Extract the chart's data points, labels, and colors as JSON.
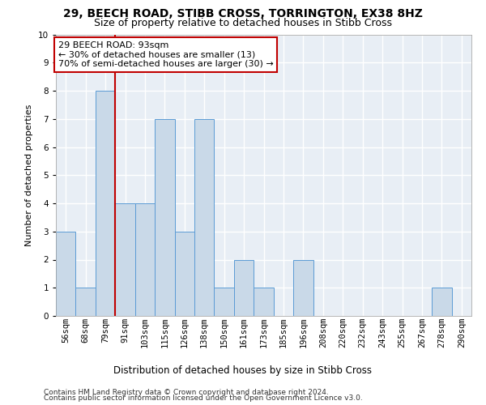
{
  "title1": "29, BEECH ROAD, STIBB CROSS, TORRINGTON, EX38 8HZ",
  "title2": "Size of property relative to detached houses in Stibb Cross",
  "xlabel": "Distribution of detached houses by size in Stibb Cross",
  "ylabel": "Number of detached properties",
  "categories": [
    "56sqm",
    "68sqm",
    "79sqm",
    "91sqm",
    "103sqm",
    "115sqm",
    "126sqm",
    "138sqm",
    "150sqm",
    "161sqm",
    "173sqm",
    "185sqm",
    "196sqm",
    "208sqm",
    "220sqm",
    "232sqm",
    "243sqm",
    "255sqm",
    "267sqm",
    "278sqm",
    "290sqm"
  ],
  "values": [
    3,
    1,
    8,
    4,
    4,
    7,
    3,
    7,
    1,
    2,
    1,
    0,
    2,
    0,
    0,
    0,
    0,
    0,
    0,
    1,
    0
  ],
  "bar_color": "#c9d9e8",
  "bar_edge_color": "#5b9bd5",
  "reference_line_x": 2.5,
  "reference_line_color": "#c00000",
  "annotation_line1": "29 BEECH ROAD: 93sqm",
  "annotation_line2": "← 30% of detached houses are smaller (13)",
  "annotation_line3": "70% of semi-detached houses are larger (30) →",
  "annotation_box_edgecolor": "#c00000",
  "ylim_min": 0,
  "ylim_max": 10,
  "yticks": [
    0,
    1,
    2,
    3,
    4,
    5,
    6,
    7,
    8,
    9,
    10
  ],
  "footer1": "Contains HM Land Registry data © Crown copyright and database right 2024.",
  "footer2": "Contains public sector information licensed under the Open Government Licence v3.0.",
  "plot_bg_color": "#e8eef5",
  "grid_color": "#ffffff",
  "title1_fontsize": 10,
  "title2_fontsize": 9,
  "ylabel_fontsize": 8,
  "xlabel_fontsize": 8.5,
  "tick_fontsize": 7.5,
  "annotation_fontsize": 8,
  "footer_fontsize": 6.5
}
